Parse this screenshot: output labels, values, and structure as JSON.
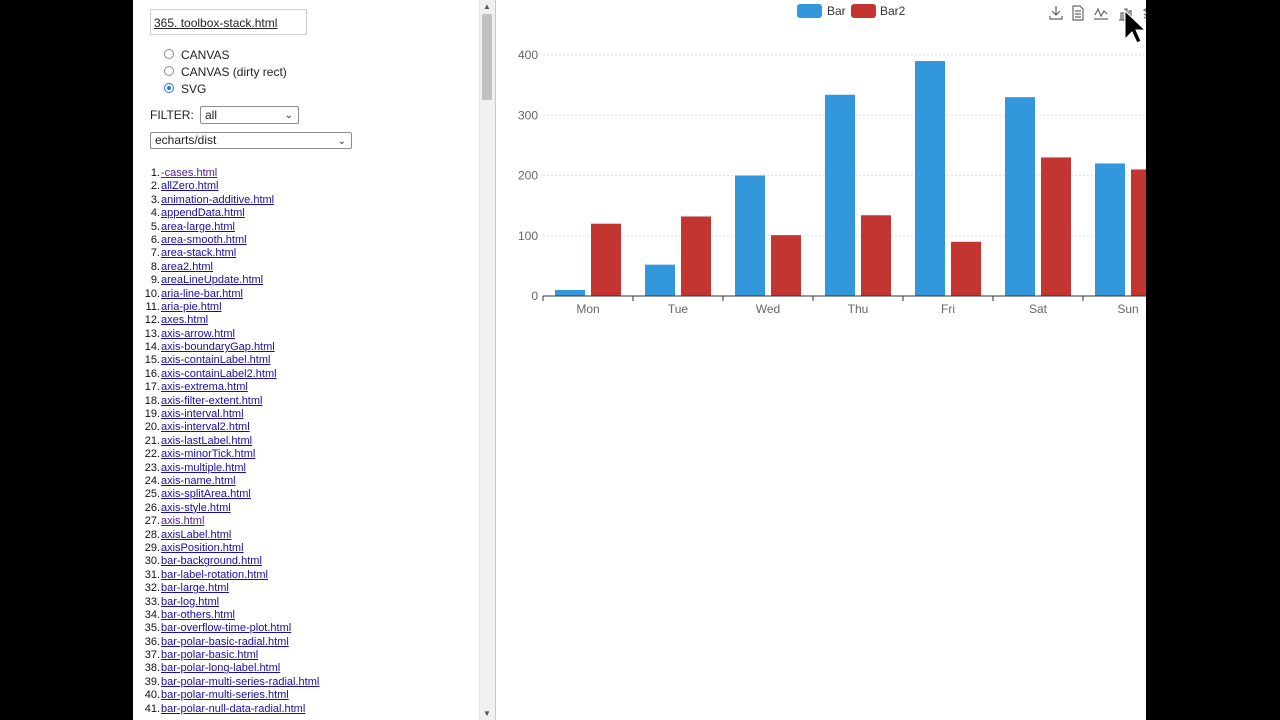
{
  "sidebar": {
    "current_file": "365. toolbox-stack.html",
    "renderers": [
      {
        "label": "CANVAS",
        "checked": false
      },
      {
        "label": "CANVAS (dirty rect)",
        "checked": false
      },
      {
        "label": "SVG",
        "checked": true
      }
    ],
    "filter_label": "FILTER:",
    "filter_value": "all",
    "dir_value": "echarts/dist",
    "files": [
      "-cases.html",
      "allZero.html",
      "animation-additive.html",
      "appendData.html",
      "area-large.html",
      "area-smooth.html",
      "area-stack.html",
      "area2.html",
      "areaLineUpdate.html",
      "aria-line-bar.html",
      "aria-pie.html",
      "axes.html",
      "axis-arrow.html",
      "axis-boundaryGap.html",
      "axis-containLabel.html",
      "axis-containLabel2.html",
      "axis-extrema.html",
      "axis-filter-extent.html",
      "axis-interval.html",
      "axis-interval2.html",
      "axis-lastLabel.html",
      "axis-minorTick.html",
      "axis-multiple.html",
      "axis-name.html",
      "axis-splitArea.html",
      "axis-style.html",
      "axis.html",
      "axisLabel.html",
      "axisPosition.html",
      "bar-background.html",
      "bar-label-rotation.html",
      "bar-large.html",
      "bar-log.html",
      "bar-others.html",
      "bar-overflow-time-plot.html",
      "bar-polar-basic-radial.html",
      "bar-polar-basic.html",
      "bar-polar-long-label.html",
      "bar-polar-multi-series-radial.html",
      "bar-polar-multi-series.html",
      "bar-polar-null-data-radial.html"
    ],
    "visited": [
      0,
      26
    ]
  },
  "toolbox": {
    "icons": [
      "download-icon",
      "data-view-icon",
      "line-chart-icon",
      "bar-chart-icon",
      "stack-icon"
    ]
  },
  "chart_data": {
    "type": "bar",
    "categories": [
      "Mon",
      "Tue",
      "Wed",
      "Thu",
      "Fri",
      "Sat",
      "Sun"
    ],
    "series": [
      {
        "name": "Bar",
        "color": "#3398db",
        "values": [
          10,
          52,
          200,
          334,
          390,
          330,
          220
        ]
      },
      {
        "name": "Bar2",
        "color": "#c23531",
        "values": [
          120,
          132,
          101,
          134,
          90,
          230,
          210
        ]
      }
    ],
    "y_ticks": [
      "0",
      "100",
      "200",
      "300",
      "400"
    ],
    "ylim": [
      0,
      400
    ],
    "grid": "dashed horizontal",
    "legend_position": "top-center"
  }
}
